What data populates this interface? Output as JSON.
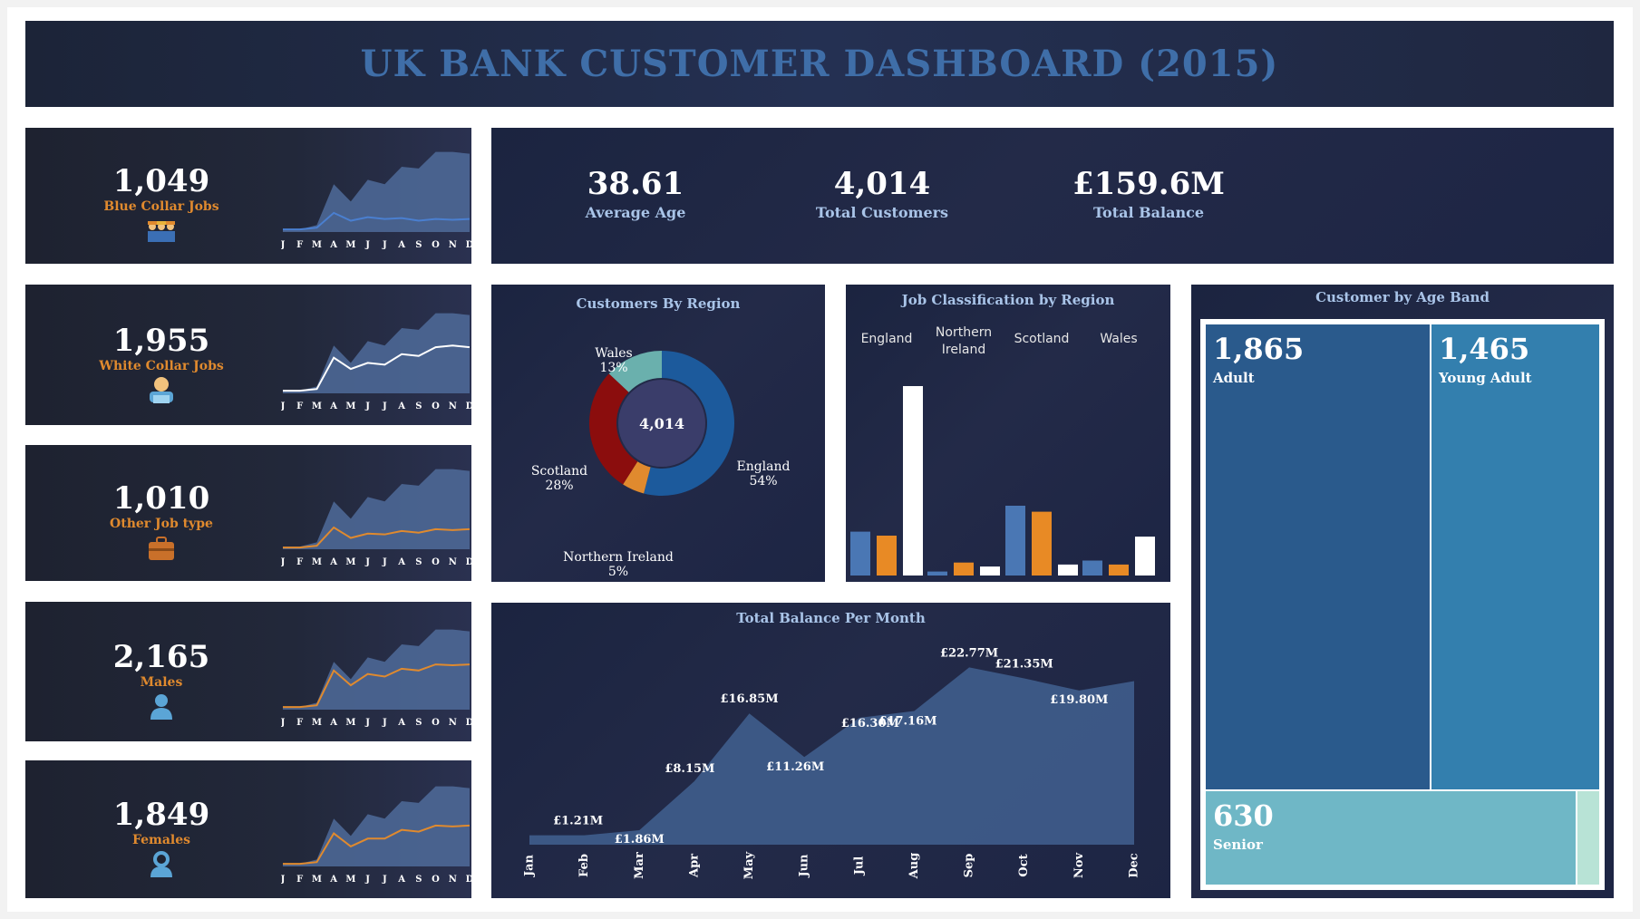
{
  "title": "UK BANK CUSTOMER DASHBOARD (2015)",
  "months_short": [
    "J",
    "F",
    "M",
    "A",
    "M",
    "J",
    "J",
    "A",
    "S",
    "O",
    "N",
    "D"
  ],
  "side_kpis": [
    {
      "value": "1,049",
      "label": "Blue Collar Jobs",
      "icon": "blue-collar-workers-icon",
      "line_color": "#4a7fd0",
      "line": [
        0.03,
        0.03,
        0.05,
        0.22,
        0.13,
        0.17,
        0.15,
        0.16,
        0.13,
        0.15,
        0.14,
        0.15
      ]
    },
    {
      "value": "1,955",
      "label": "White Collar Jobs",
      "icon": "office-worker-icon",
      "line_color": "#ffffff",
      "line": [
        0.03,
        0.03,
        0.05,
        0.41,
        0.28,
        0.35,
        0.33,
        0.45,
        0.43,
        0.53,
        0.55,
        0.53
      ]
    },
    {
      "value": "1,010",
      "label": "Other Job type",
      "icon": "briefcase-icon",
      "line_color": "#e08a2e",
      "line": [
        0.02,
        0.02,
        0.04,
        0.25,
        0.13,
        0.18,
        0.17,
        0.21,
        0.19,
        0.23,
        0.22,
        0.23
      ]
    },
    {
      "value": "2,165",
      "label": "Males",
      "icon": "male-user-icon",
      "line_color": "#e08a2e",
      "line": [
        0.03,
        0.03,
        0.05,
        0.45,
        0.28,
        0.41,
        0.38,
        0.47,
        0.45,
        0.52,
        0.51,
        0.52
      ]
    },
    {
      "value": "1,849",
      "label": "Females",
      "icon": "female-user-icon",
      "line_color": "#e08a2e",
      "line": [
        0.03,
        0.03,
        0.05,
        0.38,
        0.23,
        0.32,
        0.32,
        0.42,
        0.4,
        0.47,
        0.46,
        0.47
      ]
    }
  ],
  "sparkline_area": [
    0.03,
    0.03,
    0.08,
    0.55,
    0.35,
    0.6,
    0.55,
    0.75,
    0.73,
    0.92,
    0.92,
    0.9
  ],
  "top_kpis": [
    {
      "value": "38.61",
      "label": "Average Age"
    },
    {
      "value": "4,014",
      "label": "Total Customers"
    },
    {
      "value": "£159.6M",
      "label": "Total Balance"
    }
  ],
  "region_title": "Customers By Region",
  "donut_center": "4,014",
  "job_title": "Job Classification by Region",
  "balance_title": "Total Balance Per Month",
  "age_title": "Customer by Age Band",
  "chart_data": [
    {
      "type": "pie",
      "title": "Customers By Region",
      "categories": [
        "England",
        "Northern Ireland",
        "Scotland",
        "Wales"
      ],
      "values": [
        54,
        5,
        28,
        13
      ],
      "labels": [
        "England\n54%",
        "Northern Ireland\n5%",
        "Scotland\n28%",
        "Wales\n13%"
      ],
      "colors": [
        "#1c5a9c",
        "#e08a2e",
        "#8b0d0d",
        "#6ab0ad"
      ],
      "center": "4,014"
    },
    {
      "type": "bar",
      "title": "Job Classification by Region",
      "categories": [
        "England",
        "Northern Ireland",
        "Scotland",
        "Wales"
      ],
      "series": [
        {
          "values": [
            44,
            4,
            70,
            15
          ],
          "color": "#4a77b4"
        },
        {
          "values": [
            40,
            13,
            64,
            11
          ],
          "color": "#e88a25"
        },
        {
          "values": [
            190,
            9,
            11,
            39
          ],
          "color": "#ffffff"
        }
      ],
      "ylim": [
        0,
        200
      ]
    },
    {
      "type": "area",
      "title": "Total Balance Per Month",
      "categories": [
        "Jan",
        "Feb",
        "Mar",
        "Apr",
        "May",
        "Jun",
        "Jul",
        "Aug",
        "Sep",
        "Oct",
        "Nov",
        "Dec"
      ],
      "values": [
        1.21,
        1.21,
        1.86,
        8.15,
        16.85,
        11.26,
        16.3,
        17.16,
        22.77,
        21.35,
        19.8,
        21.0
      ],
      "labels": [
        "",
        "£1.21M",
        "£1.86M",
        "£8.15M",
        "£16.85M",
        "£11.26M",
        "£16.30M",
        "£17.16M",
        "£22.77M",
        "£21.35M",
        "£19.80M",
        ""
      ],
      "color": "#3f5d8c"
    },
    {
      "type": "heatmap",
      "title": "Customer by Age Band",
      "categories": [
        "Adult",
        "Young Adult",
        "Senior"
      ],
      "values": [
        1865,
        1465,
        630
      ],
      "display": [
        "1,865",
        "1,465",
        "630"
      ]
    }
  ]
}
